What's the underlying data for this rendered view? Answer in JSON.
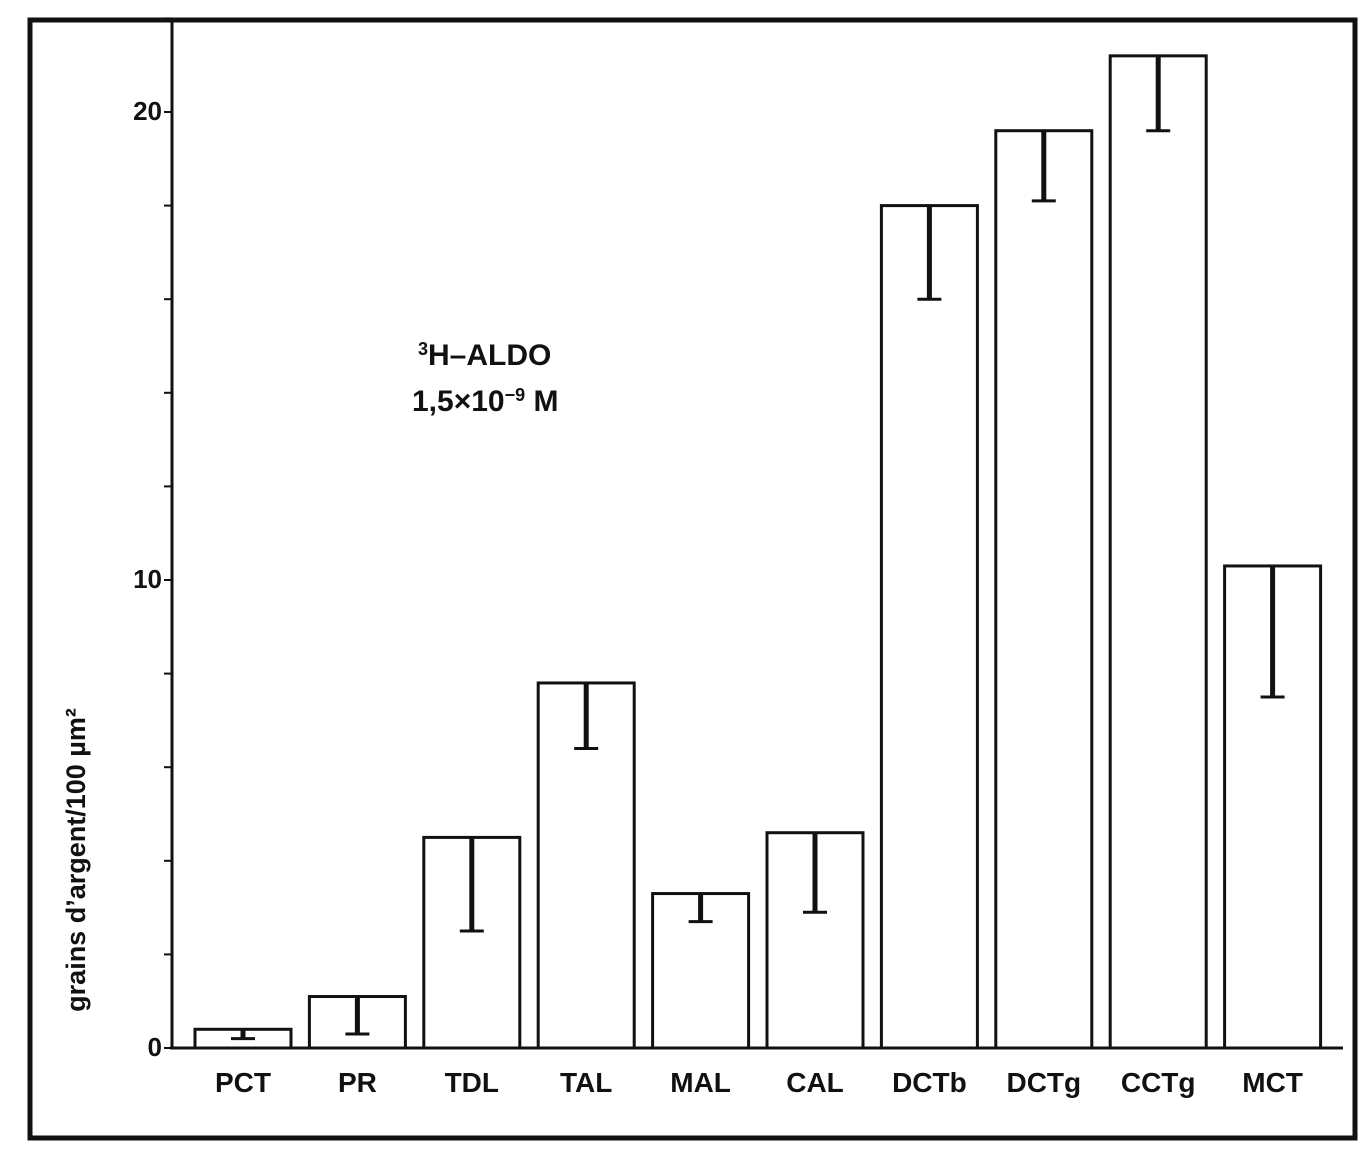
{
  "chart_data": {
    "type": "bar",
    "title": "",
    "annotation": {
      "line1_sup": "3",
      "line1": "H–ALDO",
      "line2": "1,5×10",
      "line2_sup": "−9",
      "line2_end": " M"
    },
    "xlabel": "",
    "ylabel": "grains d’argent/100 µm²",
    "ylim": [
      0,
      22
    ],
    "yticks_labeled": [
      0,
      10,
      20
    ],
    "yticks_minor_step": 2,
    "categories": [
      "PCT",
      "PR",
      "TDL",
      "TAL",
      "MAL",
      "CAL",
      "DCTb",
      "DCTg",
      "CCTg",
      "MCT"
    ],
    "values": [
      0.4,
      1.1,
      4.5,
      7.8,
      3.3,
      4.6,
      18.0,
      19.6,
      21.2,
      10.3
    ],
    "error_low": [
      0.2,
      0.8,
      2.0,
      1.4,
      0.6,
      1.7,
      2.0,
      1.5,
      1.6,
      2.8
    ],
    "grid": false,
    "colors": {
      "bar_fill": "#ffffff",
      "stroke": "#111111"
    }
  }
}
